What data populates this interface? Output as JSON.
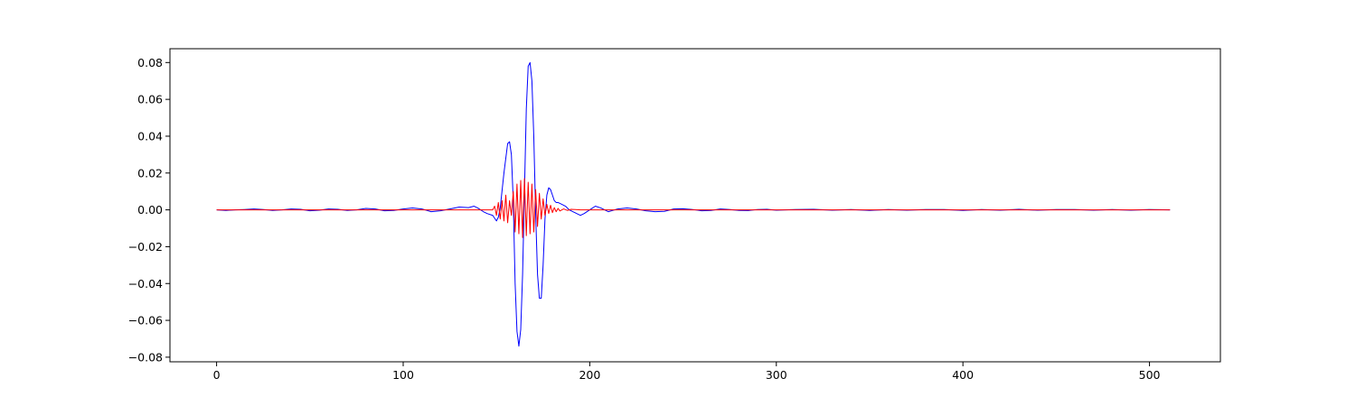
{
  "chart_data": {
    "type": "line",
    "title": "",
    "xlabel": "",
    "ylabel": "",
    "xlim": [
      -25,
      538
    ],
    "ylim": [
      -0.0825,
      0.0875
    ],
    "grid": false,
    "legend": "none",
    "x_ticks": [
      0,
      100,
      200,
      300,
      400,
      500
    ],
    "x_tick_labels": [
      "0",
      "100",
      "200",
      "300",
      "400",
      "500"
    ],
    "y_ticks": [
      -0.08,
      -0.06,
      -0.04,
      -0.02,
      0.0,
      0.02,
      0.04,
      0.06,
      0.08
    ],
    "y_tick_labels": [
      "−0.08",
      "−0.06",
      "−0.04",
      "−0.02",
      "0.00",
      "0.02",
      "0.04",
      "0.06",
      "0.08"
    ],
    "series": [
      {
        "color": "#0000ff",
        "x": [
          0,
          5,
          10,
          15,
          20,
          25,
          30,
          35,
          40,
          45,
          50,
          55,
          60,
          65,
          70,
          75,
          80,
          85,
          90,
          95,
          100,
          105,
          110,
          115,
          120,
          125,
          130,
          135,
          138,
          140,
          143,
          145,
          148,
          150,
          151,
          152,
          154,
          156,
          157,
          158,
          159,
          160,
          161,
          162,
          163,
          164,
          165,
          166,
          167,
          168,
          169,
          170,
          171,
          172,
          173,
          174,
          175,
          176,
          177,
          178,
          179,
          180,
          181,
          182,
          183,
          185,
          187,
          189,
          191,
          193,
          195,
          197,
          200,
          203,
          206,
          210,
          215,
          220,
          225,
          230,
          235,
          240,
          245,
          250,
          255,
          260,
          265,
          270,
          275,
          280,
          285,
          290,
          295,
          300,
          310,
          320,
          330,
          340,
          350,
          360,
          370,
          380,
          390,
          400,
          410,
          420,
          430,
          440,
          450,
          460,
          470,
          480,
          490,
          500,
          511
        ],
        "y": [
          0.0,
          -0.0003,
          0.0,
          0.0002,
          0.0005,
          0.0002,
          -0.0003,
          0.0,
          0.0005,
          0.0003,
          -0.0005,
          -0.0002,
          0.0005,
          0.0003,
          -0.0003,
          0.0,
          0.0008,
          0.0005,
          -0.0005,
          -0.0003,
          0.0005,
          0.001,
          0.0005,
          -0.001,
          -0.0005,
          0.0005,
          0.0015,
          0.0012,
          0.002,
          0.001,
          -0.001,
          -0.002,
          -0.003,
          -0.006,
          -0.004,
          0.001,
          0.02,
          0.036,
          0.037,
          0.03,
          0.005,
          -0.04,
          -0.066,
          -0.074,
          -0.065,
          -0.035,
          0.01,
          0.055,
          0.078,
          0.08,
          0.07,
          0.04,
          -0.002,
          -0.035,
          -0.048,
          -0.048,
          -0.03,
          -0.005,
          0.008,
          0.012,
          0.011,
          0.008,
          0.005,
          0.004,
          0.004,
          0.003,
          0.002,
          0.0,
          -0.001,
          -0.002,
          -0.003,
          -0.002,
          0.0,
          0.002,
          0.001,
          -0.001,
          0.0005,
          0.001,
          0.0005,
          -0.0005,
          -0.001,
          -0.0008,
          0.0005,
          0.0006,
          0.0002,
          -0.0005,
          -0.0003,
          0.0005,
          0.0002,
          -0.0003,
          -0.0004,
          0.0002,
          0.0003,
          -0.0002,
          0.0002,
          0.0003,
          -0.0002,
          0.0002,
          -0.0003,
          0.0002,
          -0.0002,
          0.0002,
          0.0002,
          -0.0003,
          0.0002,
          -0.0002,
          0.0003,
          -0.0002,
          0.0002,
          0.0002,
          -0.0002,
          0.0002,
          -0.0002,
          0.0002,
          0.0
        ]
      },
      {
        "color": "#ff0000",
        "x": [
          0,
          100,
          140,
          148,
          149,
          150,
          151,
          152,
          153,
          154,
          155,
          156,
          157,
          158,
          159,
          160,
          161,
          162,
          163,
          164,
          165,
          166,
          167,
          168,
          169,
          170,
          171,
          172,
          173,
          174,
          175,
          176,
          177,
          178,
          179,
          180,
          181,
          182,
          183,
          184,
          186,
          188,
          190,
          195,
          200,
          511
        ],
        "y": [
          0.0,
          0.0,
          0.0,
          0.0,
          0.002,
          -0.003,
          0.004,
          -0.005,
          0.005,
          -0.006,
          0.008,
          -0.007,
          0.005,
          -0.003,
          0.01,
          -0.012,
          0.014,
          -0.013,
          0.016,
          -0.015,
          0.017,
          -0.014,
          0.015,
          -0.013,
          0.014,
          -0.012,
          0.011,
          -0.009,
          0.009,
          -0.005,
          0.006,
          -0.003,
          0.003,
          -0.002,
          0.0025,
          -0.0015,
          0.0012,
          -0.001,
          0.0008,
          -0.0006,
          0.0005,
          -0.0003,
          0.0003,
          0.0,
          0.0,
          0.0
        ]
      }
    ]
  }
}
